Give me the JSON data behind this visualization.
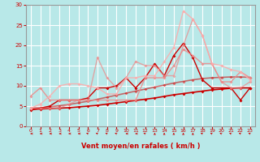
{
  "title": "",
  "xlabel": "Vent moyen/en rafales ( km/h )",
  "background_color": "#b8e8e8",
  "grid_color": "#ffffff",
  "xlim": [
    -0.5,
    23.5
  ],
  "ylim": [
    0,
    30
  ],
  "xticks": [
    0,
    1,
    2,
    3,
    4,
    5,
    6,
    7,
    8,
    9,
    10,
    11,
    12,
    13,
    14,
    15,
    16,
    17,
    18,
    19,
    20,
    21,
    22,
    23
  ],
  "yticks": [
    0,
    5,
    10,
    15,
    20,
    25,
    30
  ],
  "series": [
    {
      "x": [
        0,
        1,
        2,
        3,
        4,
        5,
        6,
        7,
        8,
        9,
        10,
        11,
        12,
        13,
        14,
        15,
        16,
        17,
        18,
        19,
        20,
        21,
        22,
        23
      ],
      "y": [
        4.2,
        4.3,
        4.4,
        4.5,
        4.6,
        4.8,
        5.0,
        5.2,
        5.5,
        5.8,
        6.1,
        6.4,
        6.7,
        7.0,
        7.4,
        7.8,
        8.1,
        8.4,
        8.7,
        9.0,
        9.2,
        9.4,
        9.5,
        9.5
      ],
      "color": "#cc0000",
      "alpha": 1.0,
      "lw": 1.2,
      "marker": "D",
      "ms": 2.0
    },
    {
      "x": [
        0,
        1,
        2,
        3,
        4,
        5,
        6,
        7,
        8,
        9,
        10,
        11,
        12,
        13,
        14,
        15,
        16,
        17,
        18,
        19,
        20,
        21,
        22,
        23
      ],
      "y": [
        4.5,
        4.6,
        4.8,
        5.1,
        5.4,
        5.8,
        6.2,
        6.7,
        7.2,
        7.7,
        8.2,
        8.7,
        9.2,
        9.7,
        10.2,
        10.7,
        11.1,
        11.5,
        11.8,
        12.0,
        12.1,
        12.2,
        12.2,
        12.1
      ],
      "color": "#cc0000",
      "alpha": 0.55,
      "lw": 1.2,
      "marker": "D",
      "ms": 2.0
    },
    {
      "x": [
        0,
        1,
        2,
        3,
        4,
        5,
        6,
        7,
        8,
        9,
        10,
        11,
        12,
        13,
        14,
        15,
        16,
        17,
        18,
        19,
        20,
        21,
        22,
        23
      ],
      "y": [
        4.0,
        4.5,
        5.0,
        6.5,
        6.5,
        6.5,
        7.0,
        9.5,
        9.5,
        10.0,
        12.0,
        9.5,
        12.0,
        15.5,
        12.5,
        17.5,
        20.5,
        17.0,
        11.5,
        9.5,
        9.5,
        9.5,
        6.5,
        9.5
      ],
      "color": "#cc0000",
      "alpha": 1.0,
      "lw": 1.0,
      "marker": "D",
      "ms": 2.0
    },
    {
      "x": [
        0,
        1,
        2,
        3,
        4,
        5,
        6,
        7,
        8,
        9,
        10,
        11,
        12,
        13,
        14,
        15,
        16,
        17,
        18,
        19,
        20,
        21,
        22,
        23
      ],
      "y": [
        7.5,
        9.5,
        6.5,
        6.5,
        6.5,
        6.5,
        6.5,
        6.5,
        6.5,
        6.5,
        6.5,
        6.5,
        12.0,
        12.0,
        12.0,
        15.0,
        19.0,
        17.5,
        15.5,
        15.5,
        11.0,
        11.0,
        13.5,
        12.0
      ],
      "color": "#ee8888",
      "alpha": 0.85,
      "lw": 1.0,
      "marker": "D",
      "ms": 2.0
    },
    {
      "x": [
        0,
        1,
        2,
        3,
        4,
        5,
        6,
        7,
        8,
        9,
        10,
        11,
        12,
        13,
        14,
        15,
        16,
        17,
        18,
        19,
        20,
        21,
        22,
        23
      ],
      "y": [
        4.5,
        4.5,
        4.5,
        4.5,
        5.5,
        6.5,
        6.5,
        17.0,
        12.0,
        9.5,
        12.0,
        16.0,
        15.0,
        15.0,
        12.5,
        12.5,
        20.0,
        26.5,
        22.5,
        15.5,
        11.0,
        9.5,
        9.5,
        11.0
      ],
      "color": "#ee8888",
      "alpha": 0.7,
      "lw": 1.0,
      "marker": "D",
      "ms": 2.0
    },
    {
      "x": [
        0,
        1,
        2,
        3,
        4,
        5,
        6,
        7,
        8,
        9,
        10,
        11,
        12,
        13,
        14,
        15,
        16,
        17,
        18,
        19,
        20,
        21,
        22,
        23
      ],
      "y": [
        4.5,
        5.5,
        7.5,
        10.0,
        10.5,
        10.5,
        10.0,
        9.5,
        8.0,
        8.0,
        12.0,
        12.0,
        12.5,
        12.5,
        16.0,
        19.5,
        28.5,
        26.5,
        22.5,
        15.5,
        15.0,
        14.0,
        13.5,
        11.5
      ],
      "color": "#ffaaaa",
      "alpha": 0.85,
      "lw": 1.0,
      "marker": "D",
      "ms": 2.0
    }
  ],
  "wind_directions": [
    "W",
    "W",
    "W",
    "W",
    "W",
    "W",
    "NW",
    "NW",
    "NW",
    "NW",
    "W",
    "W",
    "NW",
    "N",
    "N",
    "N",
    "N",
    "N",
    "NW",
    "NW",
    "NW",
    "NW",
    "NW",
    "NW"
  ],
  "xlabel_color": "#cc0000",
  "tick_color": "#cc0000"
}
